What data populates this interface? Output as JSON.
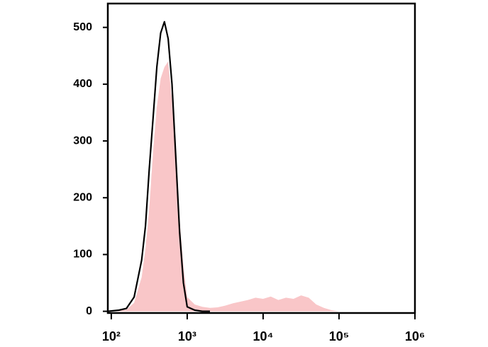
{
  "chart_data": {
    "type": "histogram-overlay",
    "x": [
      90,
      126,
      158,
      200,
      251,
      282,
      316,
      355,
      398,
      447,
      501,
      562,
      631,
      708,
      794,
      891,
      1000,
      1259,
      1585,
      1995,
      2512,
      3162,
      3981,
      5012,
      6310,
      7943,
      10000,
      12589,
      15849,
      19953,
      25119,
      31623,
      39811,
      50119,
      63096,
      79433,
      100000
    ],
    "series": [
      {
        "color": "#f9c6c8",
        "fill": true,
        "values": [
          0,
          1,
          3,
          15,
          60,
          110,
          180,
          280,
          360,
          410,
          430,
          440,
          370,
          260,
          160,
          80,
          25,
          12,
          8,
          6,
          7,
          10,
          14,
          17,
          20,
          24,
          22,
          26,
          20,
          24,
          22,
          28,
          24,
          12,
          6,
          2,
          0
        ]
      },
      {
        "color": "#000000",
        "fill": false,
        "values": [
          0,
          2,
          5,
          25,
          90,
          150,
          250,
          340,
          430,
          490,
          510,
          480,
          400,
          270,
          140,
          50,
          8,
          2,
          0,
          0,
          null,
          null,
          null,
          null,
          null,
          null,
          null,
          null,
          null,
          null,
          null,
          null,
          null,
          null,
          null,
          null,
          null
        ]
      }
    ],
    "log_x": true,
    "xlim": [
      90,
      1000000
    ],
    "xticks": [
      {
        "value": 100,
        "label": "10²"
      },
      {
        "value": 1000,
        "label": "10³"
      },
      {
        "value": 10000,
        "label": "10⁴"
      },
      {
        "value": 100000,
        "label": "10⁵"
      },
      {
        "value": 1000000,
        "label": "10⁶"
      }
    ],
    "ylim": [
      -3,
      542
    ],
    "yticks": [
      0,
      100,
      200,
      300,
      400,
      500
    ]
  }
}
